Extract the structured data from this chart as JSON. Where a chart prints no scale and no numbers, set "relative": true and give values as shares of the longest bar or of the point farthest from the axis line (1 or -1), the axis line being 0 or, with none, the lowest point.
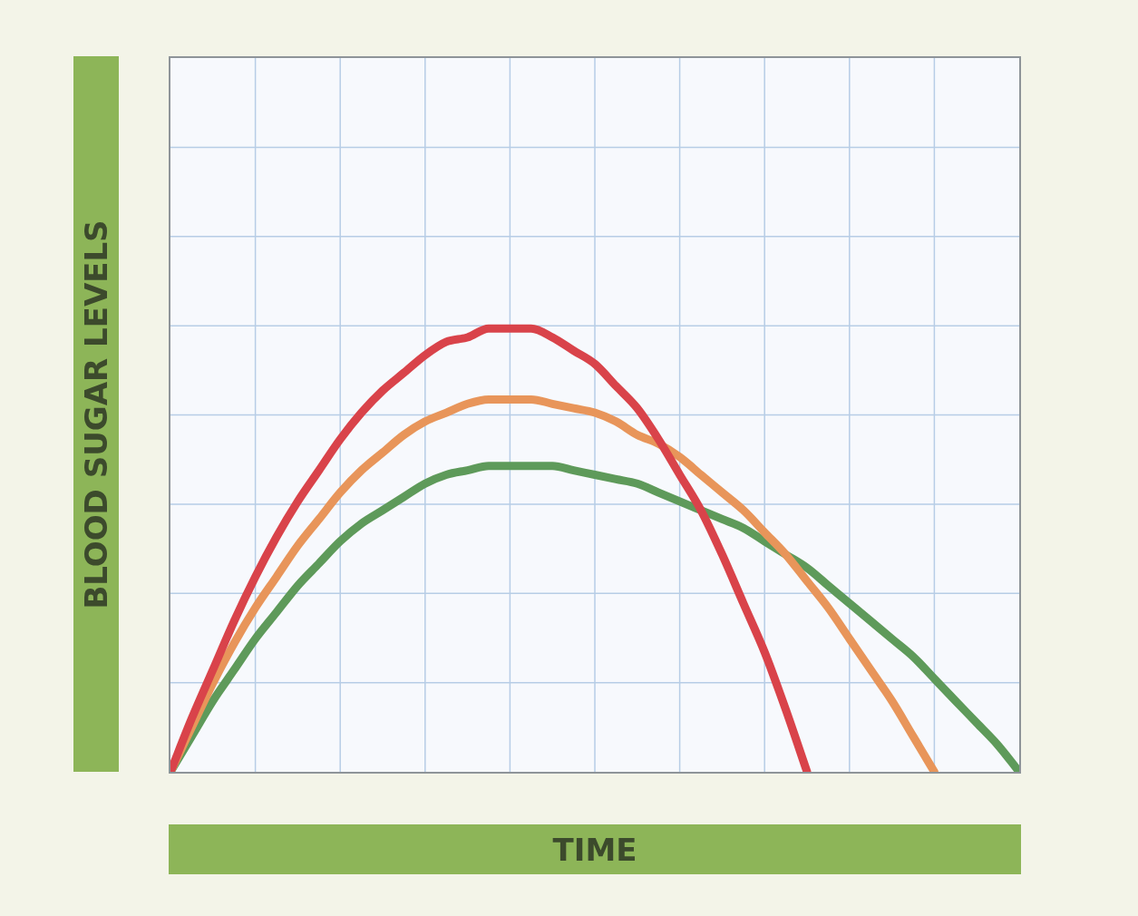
{
  "chart_data": {
    "type": "line",
    "relative": true,
    "xlabel": "TIME",
    "ylabel": "BLOOD SUGAR LEVELS",
    "grid": true,
    "legend": false,
    "marker": "none",
    "line_style": "solid",
    "categories": [
      null,
      null,
      null,
      null,
      null,
      null,
      null,
      null,
      null,
      null,
      null,
      null,
      null,
      null,
      null,
      null,
      null,
      null,
      null,
      null,
      null,
      null,
      null,
      null,
      null,
      null,
      null,
      null,
      null,
      null,
      null,
      null,
      null,
      null,
      null,
      null,
      null,
      null,
      null,
      null,
      null
    ],
    "series": [
      {
        "color": "#d9434a",
        "values": [
          0,
          0.12,
          0.23,
          0.34,
          0.44,
          0.53,
          0.61,
          0.68,
          0.75,
          0.81,
          0.86,
          0.9,
          0.94,
          0.97,
          0.98,
          1,
          1,
          1,
          0.98,
          0.95,
          0.92,
          0.87,
          0.82,
          0.75,
          0.67,
          0.59,
          0.49,
          0.38,
          0.27,
          0.14,
          0,
          null,
          null,
          null,
          null,
          null,
          null,
          null,
          null,
          null,
          null
        ]
      },
      {
        "color": "#e8955a",
        "values": [
          0,
          0.1,
          0.2,
          0.29,
          0.37,
          0.44,
          0.51,
          0.57,
          0.63,
          0.68,
          0.72,
          0.76,
          0.79,
          0.81,
          0.83,
          0.84,
          0.84,
          0.84,
          0.83,
          0.82,
          0.81,
          0.79,
          0.76,
          0.74,
          0.71,
          0.67,
          0.63,
          0.59,
          0.54,
          0.49,
          0.43,
          0.37,
          0.3,
          0.23,
          0.16,
          0.08,
          0,
          null,
          null,
          null,
          null
        ]
      },
      {
        "color": "#5e9a5a",
        "values": [
          0,
          0.08,
          0.16,
          0.23,
          0.3,
          0.36,
          0.42,
          0.47,
          0.52,
          0.56,
          0.59,
          0.62,
          0.65,
          0.67,
          0.68,
          0.69,
          0.69,
          0.69,
          0.69,
          0.68,
          0.67,
          0.66,
          0.65,
          0.63,
          0.61,
          0.59,
          0.57,
          0.55,
          0.52,
          0.49,
          0.46,
          0.42,
          0.38,
          0.34,
          0.3,
          0.26,
          0.21,
          0.16,
          0.11,
          0.06,
          0
        ]
      }
    ]
  }
}
